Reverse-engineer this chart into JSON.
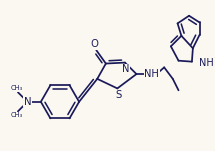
{
  "bg_color": "#faf8f0",
  "line_color": "#1a1a5a",
  "line_width": 1.25,
  "font_size": 6.8,
  "figsize": [
    2.15,
    1.51
  ],
  "dpi": 100,
  "xlim": [
    0,
    215
  ],
  "ylim": [
    0,
    151
  ]
}
